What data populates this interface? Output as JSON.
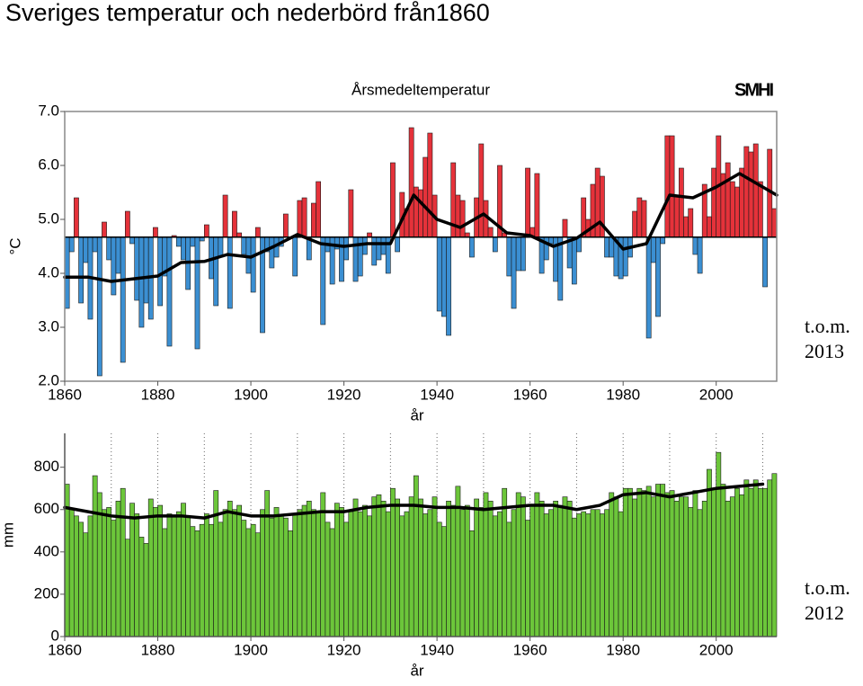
{
  "title": "Sveriges temperatur och nederbörd från1860",
  "chart_data": [
    {
      "type": "bar",
      "title": "Årsmedeltemperatur",
      "logo": "SMHI",
      "ylabel": "°C",
      "xlabel": "år",
      "annotation": [
        "t.o.m.",
        "2013"
      ],
      "baseline": 4.67,
      "colors": {
        "above": "#e5323a",
        "below": "#3b8fd2"
      },
      "xlim": [
        1860,
        2013
      ],
      "xticks": [
        1860,
        1880,
        1900,
        1920,
        1940,
        1960,
        1980,
        2000
      ],
      "ylim": [
        2,
        7
      ],
      "yticks": [
        {
          "value": 2,
          "label": "2.0"
        },
        {
          "value": 3,
          "label": "3.0"
        },
        {
          "value": 4,
          "label": "4.0"
        },
        {
          "value": 5,
          "label": "5.0"
        },
        {
          "value": 6,
          "label": "6.0"
        },
        {
          "value": 7,
          "label": "7.0"
        }
      ],
      "x": [
        1860,
        1861,
        1862,
        1863,
        1864,
        1865,
        1866,
        1867,
        1868,
        1869,
        1870,
        1871,
        1872,
        1873,
        1874,
        1875,
        1876,
        1877,
        1878,
        1879,
        1880,
        1881,
        1882,
        1883,
        1884,
        1885,
        1886,
        1887,
        1888,
        1889,
        1890,
        1891,
        1892,
        1893,
        1894,
        1895,
        1896,
        1897,
        1898,
        1899,
        1900,
        1901,
        1902,
        1903,
        1904,
        1905,
        1906,
        1907,
        1908,
        1909,
        1910,
        1911,
        1912,
        1913,
        1914,
        1915,
        1916,
        1917,
        1918,
        1919,
        1920,
        1921,
        1922,
        1923,
        1924,
        1925,
        1926,
        1927,
        1928,
        1929,
        1930,
        1931,
        1932,
        1933,
        1934,
        1935,
        1936,
        1937,
        1938,
        1939,
        1940,
        1941,
        1942,
        1943,
        1944,
        1945,
        1946,
        1947,
        1948,
        1949,
        1950,
        1951,
        1952,
        1953,
        1954,
        1955,
        1956,
        1957,
        1958,
        1959,
        1960,
        1961,
        1962,
        1963,
        1964,
        1965,
        1966,
        1967,
        1968,
        1969,
        1970,
        1971,
        1972,
        1973,
        1974,
        1975,
        1976,
        1977,
        1978,
        1979,
        1980,
        1981,
        1982,
        1983,
        1984,
        1985,
        1986,
        1987,
        1988,
        1989,
        1990,
        1991,
        1992,
        1993,
        1994,
        1995,
        1996,
        1997,
        1998,
        1999,
        2000,
        2001,
        2002,
        2003,
        2004,
        2005,
        2006,
        2007,
        2008,
        2009,
        2010,
        2011,
        2012
      ],
      "values": [
        3.35,
        4.4,
        5.4,
        3.45,
        4.2,
        3.15,
        4.4,
        2.1,
        4.95,
        4.25,
        3.6,
        4.0,
        2.35,
        5.15,
        4.55,
        3.5,
        3.0,
        3.45,
        3.15,
        4.85,
        3.4,
        3.95,
        2.65,
        4.7,
        4.5,
        4.25,
        3.7,
        4.5,
        2.6,
        4.6,
        4.9,
        3.9,
        3.4,
        4.3,
        5.45,
        3.35,
        5.15,
        4.75,
        4.35,
        4.0,
        3.65,
        4.85,
        2.9,
        4.4,
        4.1,
        4.3,
        4.5,
        5.1,
        4.65,
        3.95,
        5.35,
        5.4,
        4.25,
        5.3,
        5.7,
        3.05,
        4.4,
        3.8,
        4.45,
        3.85,
        4.25,
        5.55,
        3.85,
        3.95,
        4.35,
        4.75,
        4.15,
        4.25,
        4.35,
        4.0,
        6.05,
        4.4,
        5.5,
        5.2,
        6.7,
        5.6,
        5.55,
        6.15,
        6.6,
        5.45,
        3.3,
        3.2,
        2.85,
        6.05,
        5.45,
        5.35,
        4.75,
        4.3,
        5.4,
        6.4,
        5.35,
        4.85,
        4.4,
        6.0,
        4.75,
        3.95,
        3.35,
        4.05,
        4.05,
        5.95,
        4.85,
        5.85,
        4.0,
        4.25,
        4.55,
        3.85,
        3.5,
        5.0,
        4.1,
        3.8,
        4.4,
        5.4,
        5.0,
        5.65,
        5.95,
        5.8,
        4.3,
        4.3,
        3.95,
        3.9,
        3.95,
        4.3,
        5.15,
        5.4,
        5.35,
        2.8,
        4.2,
        3.2,
        4.55,
        6.55,
        6.55,
        5.45,
        5.95,
        5.05,
        5.2,
        4.35,
        4.0,
        5.65,
        5.05,
        5.95,
        6.55,
        5.85,
        6.05,
        5.7,
        5.6,
        5.95,
        6.35,
        6.25,
        6.4,
        5.7,
        3.75,
        6.3,
        5.2
      ],
      "trend": {
        "x": [
          1860,
          1865,
          1870,
          1875,
          1880,
          1885,
          1890,
          1895,
          1900,
          1905,
          1910,
          1915,
          1920,
          1925,
          1930,
          1935,
          1940,
          1945,
          1950,
          1955,
          1960,
          1965,
          1970,
          1975,
          1980,
          1985,
          1990,
          1995,
          2000,
          2005,
          2010,
          2013
        ],
        "values": [
          3.93,
          3.93,
          3.85,
          3.9,
          3.95,
          4.2,
          4.22,
          4.35,
          4.3,
          4.5,
          4.72,
          4.55,
          4.5,
          4.55,
          4.55,
          5.45,
          5.0,
          4.85,
          5.1,
          4.75,
          4.7,
          4.5,
          4.65,
          4.95,
          4.45,
          4.55,
          5.45,
          5.4,
          5.6,
          5.85,
          5.6,
          5.45
        ]
      }
    },
    {
      "type": "bar",
      "ylabel": "mm",
      "xlabel": "år",
      "annotation": [
        "t.o.m.",
        "2012"
      ],
      "color": "#6cc63a",
      "grid": true,
      "xlim": [
        1860,
        2013
      ],
      "xticks": [
        1860,
        1880,
        1900,
        1920,
        1940,
        1960,
        1980,
        2000
      ],
      "xminor": [
        1870,
        1890,
        1910,
        1930,
        1950,
        1970,
        1990,
        2010
      ],
      "ylim": [
        0,
        960
      ],
      "yticks": [
        0,
        200,
        400,
        600,
        800
      ],
      "x": [
        1860,
        1861,
        1862,
        1863,
        1864,
        1865,
        1866,
        1867,
        1868,
        1869,
        1870,
        1871,
        1872,
        1873,
        1874,
        1875,
        1876,
        1877,
        1878,
        1879,
        1880,
        1881,
        1882,
        1883,
        1884,
        1885,
        1886,
        1887,
        1888,
        1889,
        1890,
        1891,
        1892,
        1893,
        1894,
        1895,
        1896,
        1897,
        1898,
        1899,
        1900,
        1901,
        1902,
        1903,
        1904,
        1905,
        1906,
        1907,
        1908,
        1909,
        1910,
        1911,
        1912,
        1913,
        1914,
        1915,
        1916,
        1917,
        1918,
        1919,
        1920,
        1921,
        1922,
        1923,
        1924,
        1925,
        1926,
        1927,
        1928,
        1929,
        1930,
        1931,
        1932,
        1933,
        1934,
        1935,
        1936,
        1937,
        1938,
        1939,
        1940,
        1941,
        1942,
        1943,
        1944,
        1945,
        1946,
        1947,
        1948,
        1949,
        1950,
        1951,
        1952,
        1953,
        1954,
        1955,
        1956,
        1957,
        1958,
        1959,
        1960,
        1961,
        1962,
        1963,
        1964,
        1965,
        1966,
        1967,
        1968,
        1969,
        1970,
        1971,
        1972,
        1973,
        1974,
        1975,
        1976,
        1977,
        1978,
        1979,
        1980,
        1981,
        1982,
        1983,
        1984,
        1985,
        1986,
        1987,
        1988,
        1989,
        1990,
        1991,
        1992,
        1993,
        1994,
        1995,
        1996,
        1997,
        1998,
        1999,
        2000,
        2001,
        2002,
        2003,
        2004,
        2005,
        2006,
        2007,
        2008,
        2009,
        2010,
        2011,
        2012
      ],
      "values": [
        720,
        600,
        570,
        540,
        490,
        570,
        760,
        680,
        600,
        610,
        550,
        640,
        700,
        460,
        630,
        580,
        470,
        440,
        650,
        610,
        620,
        510,
        580,
        570,
        590,
        630,
        570,
        520,
        500,
        530,
        580,
        530,
        690,
        540,
        600,
        640,
        600,
        620,
        550,
        510,
        530,
        490,
        600,
        690,
        560,
        610,
        570,
        560,
        500,
        580,
        600,
        620,
        640,
        600,
        590,
        680,
        540,
        510,
        630,
        610,
        540,
        590,
        650,
        590,
        620,
        570,
        660,
        670,
        640,
        590,
        700,
        650,
        570,
        590,
        660,
        760,
        650,
        580,
        600,
        660,
        540,
        520,
        640,
        620,
        710,
        600,
        620,
        500,
        650,
        610,
        680,
        640,
        570,
        590,
        700,
        540,
        600,
        680,
        660,
        550,
        620,
        680,
        640,
        580,
        600,
        640,
        620,
        660,
        640,
        560,
        580,
        590,
        580,
        600,
        600,
        580,
        600,
        680,
        660,
        590,
        700,
        700,
        650,
        700,
        690,
        710,
        660,
        720,
        720,
        680,
        690,
        640,
        660,
        660,
        610,
        690,
        600,
        640,
        790,
        700,
        870,
        720,
        640,
        660,
        700,
        670,
        740,
        700,
        740,
        700,
        700,
        740,
        770
      ],
      "trend": {
        "x": [
          1860,
          1865,
          1870,
          1875,
          1880,
          1885,
          1890,
          1895,
          1900,
          1905,
          1910,
          1915,
          1920,
          1925,
          1930,
          1935,
          1940,
          1945,
          1950,
          1955,
          1960,
          1965,
          1970,
          1975,
          1980,
          1985,
          1990,
          1995,
          2000,
          2005,
          2010
        ],
        "values": [
          610,
          590,
          570,
          560,
          570,
          570,
          560,
          590,
          570,
          570,
          580,
          590,
          590,
          610,
          620,
          620,
          610,
          610,
          600,
          610,
          620,
          620,
          600,
          620,
          670,
          680,
          660,
          680,
          700,
          710,
          720
        ]
      }
    }
  ]
}
